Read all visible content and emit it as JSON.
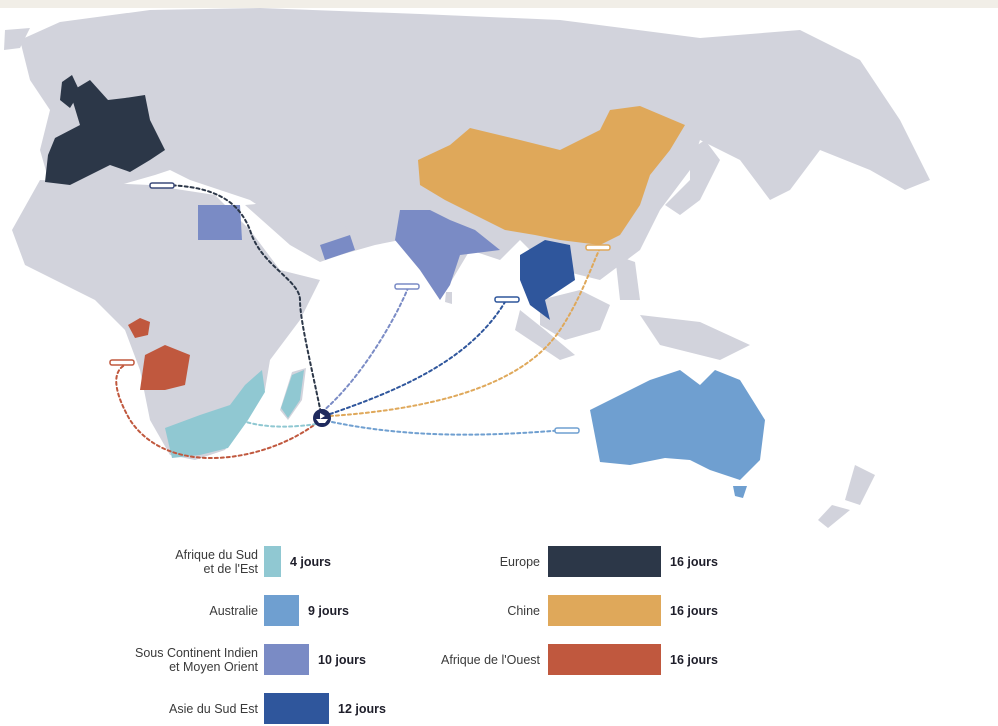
{
  "colors": {
    "land": "#d2d3dc",
    "ocean": "#ffffff",
    "hub": "#1f2a5e",
    "africa_south_east": "#90c8d2",
    "australia": "#6f9fd0",
    "india_middle_east": "#7a8bc5",
    "southeast_asia": "#2f569c",
    "europe": "#2c3748",
    "china": "#dfa85a",
    "west_africa": "#c0583e"
  },
  "map": {
    "hub_icon": "ship-icon",
    "port_icon": "port-marker-icon",
    "routes": [
      {
        "destination": "Europe",
        "color_key": "europe"
      },
      {
        "destination": "Chine",
        "color_key": "china"
      },
      {
        "destination": "Afrique de l'Ouest",
        "color_key": "west_africa"
      },
      {
        "destination": "Afrique du Sud et de l'Est",
        "color_key": "africa_south_east"
      },
      {
        "destination": "Australie",
        "color_key": "australia"
      },
      {
        "destination": "Sous Continent Indien et Moyen Orient",
        "color_key": "india_middle_east"
      },
      {
        "destination": "Asie du Sud Est",
        "color_key": "southeast_asia"
      }
    ]
  },
  "legend": {
    "left": [
      {
        "label": "Afrique du Sud\net de l'Est",
        "days": "4 jours",
        "color": "#90c8d2",
        "value": 4
      },
      {
        "label": "Australie",
        "days": "9 jours",
        "color": "#6f9fd0",
        "value": 9
      },
      {
        "label": "Sous Continent Indien\net Moyen Orient",
        "days": "10 jours",
        "color": "#7a8bc5",
        "value": 10
      },
      {
        "label": "Asie du Sud Est",
        "days": "12 jours",
        "color": "#2f569c",
        "value": 12
      }
    ],
    "right": [
      {
        "label": "Europe",
        "days": "16 jours",
        "color": "#2c3748",
        "value": 16
      },
      {
        "label": "Chine",
        "days": "16 jours",
        "color": "#dfa85a",
        "value": 16
      },
      {
        "label": "Afrique de l'Ouest",
        "days": "16 jours",
        "color": "#c0583e",
        "value": 16
      }
    ]
  }
}
